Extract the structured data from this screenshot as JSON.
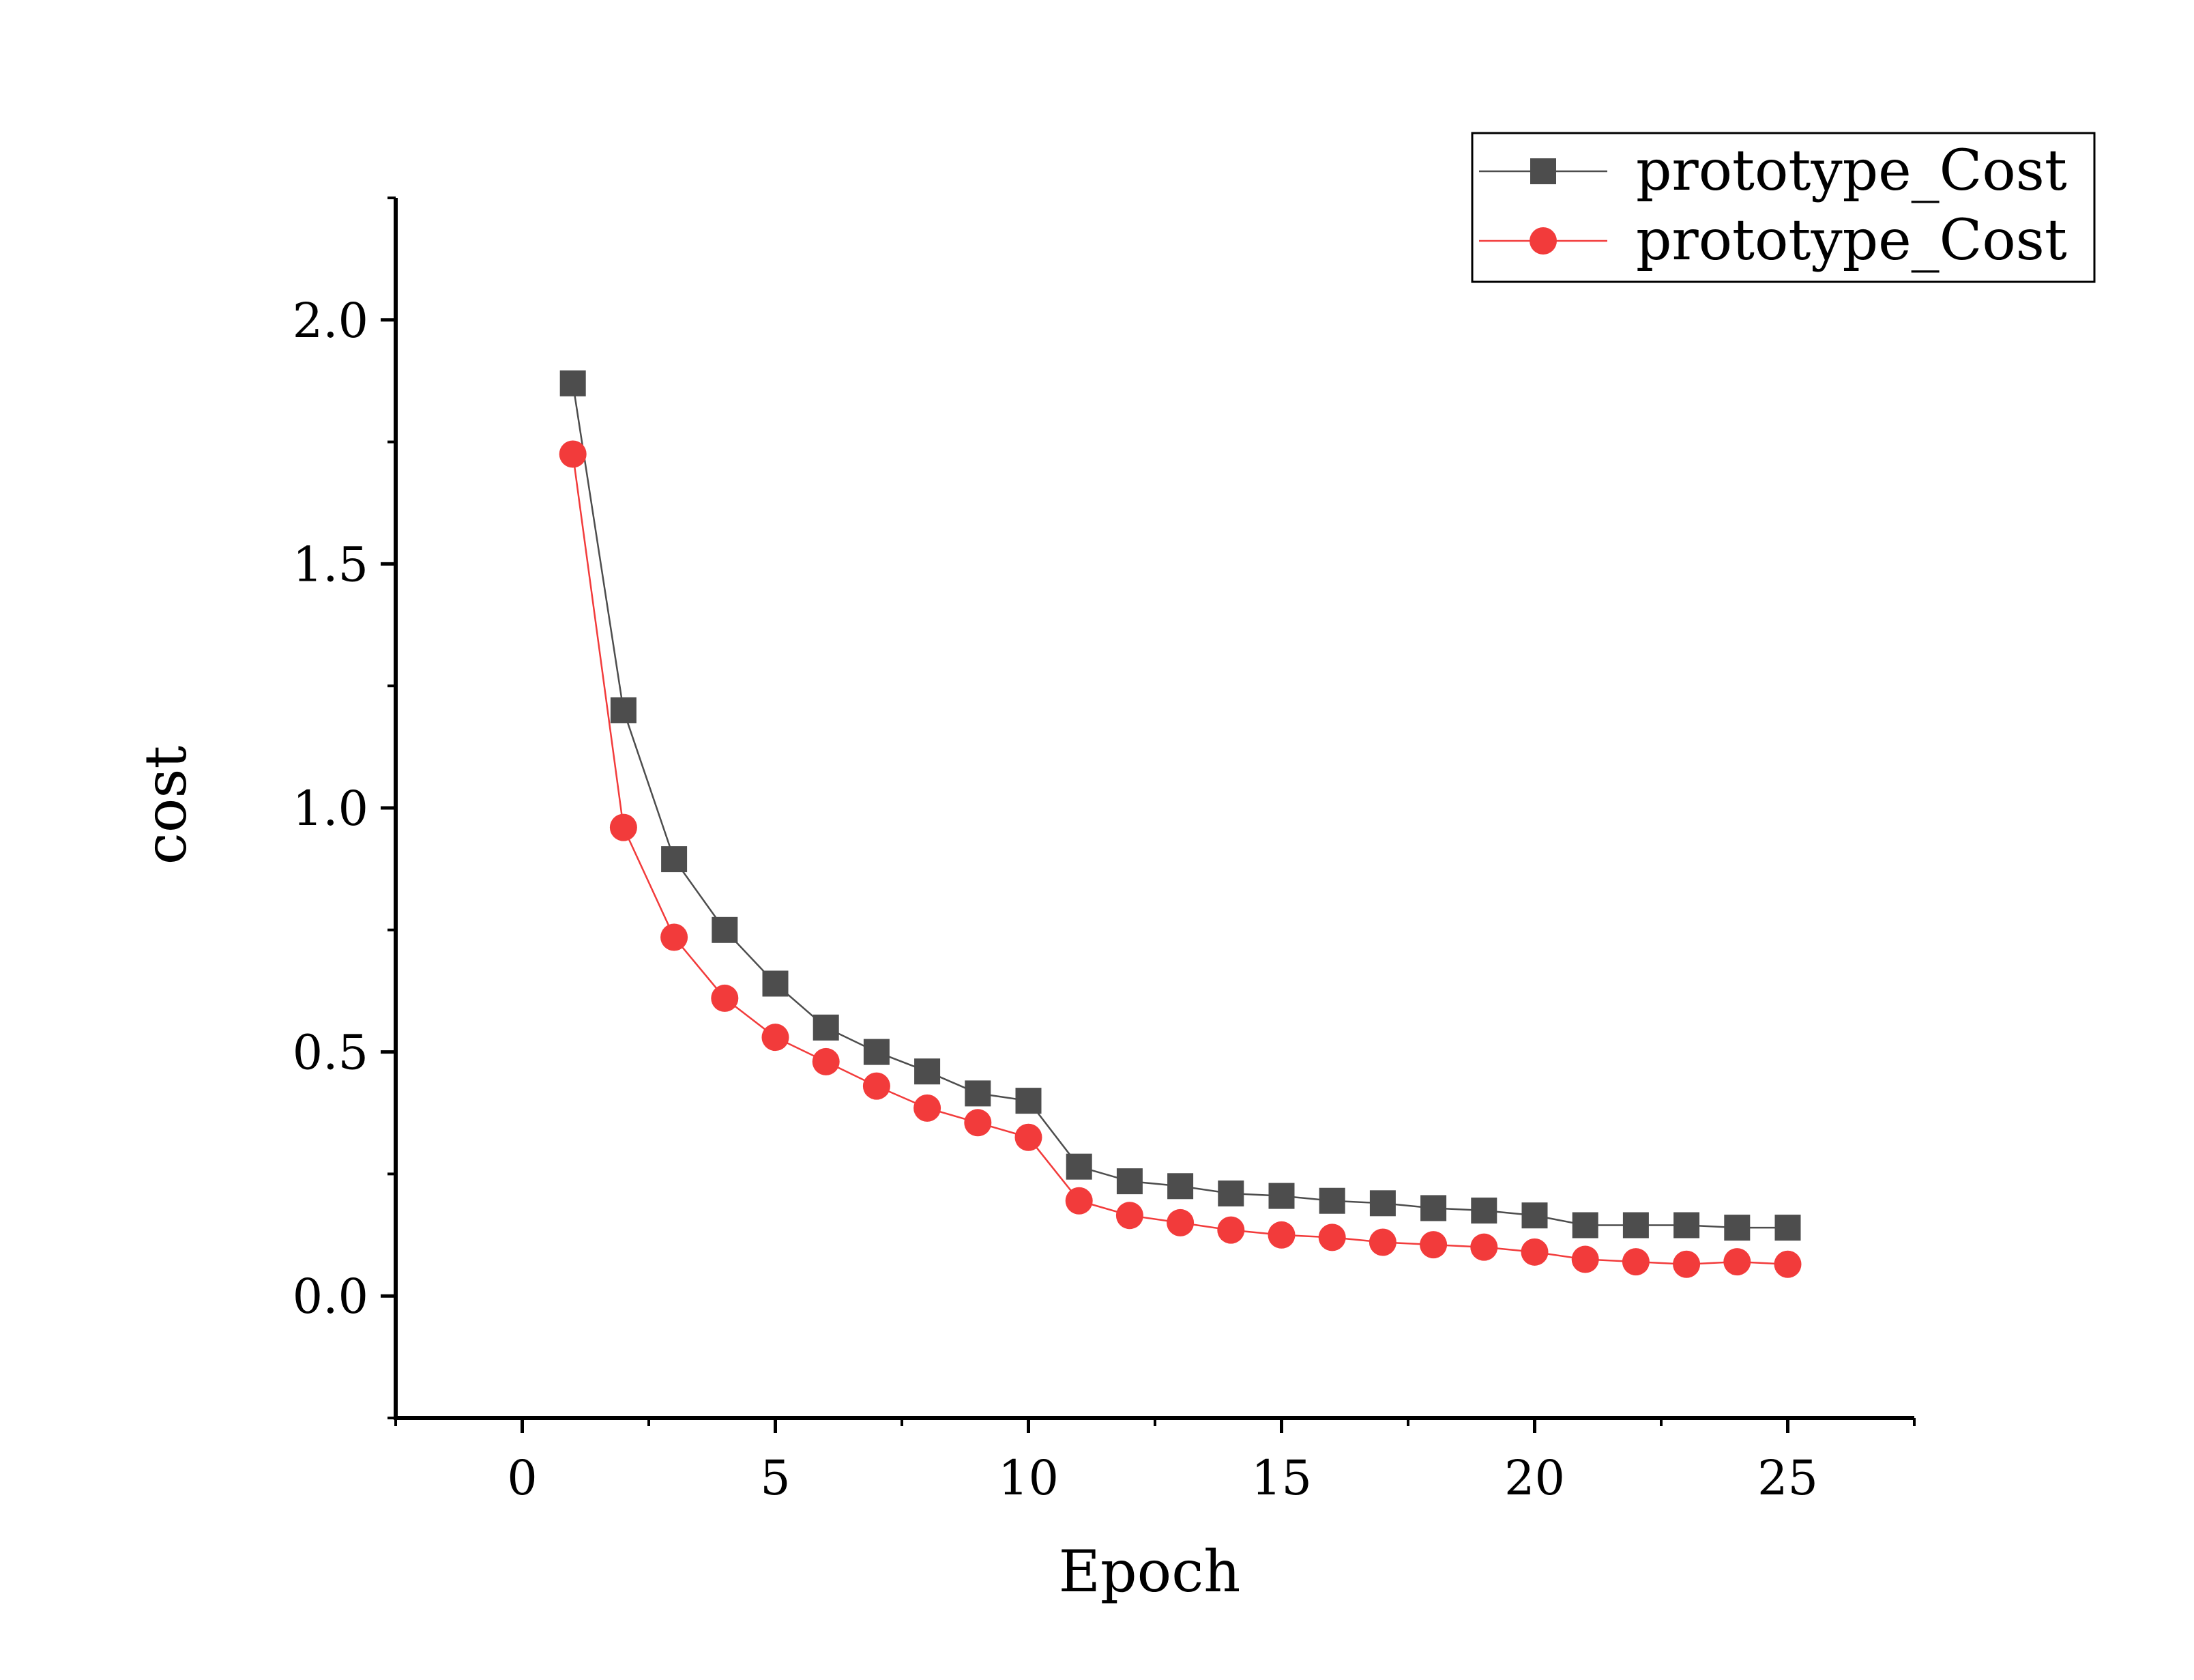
{
  "chart_data": {
    "type": "line",
    "title": "",
    "xlabel": "Epoch",
    "ylabel": "cost",
    "xlim": [
      -2.5,
      27.5
    ],
    "ylim": [
      -0.25,
      2.25
    ],
    "xticks": [
      0,
      5,
      10,
      15,
      20,
      25
    ],
    "xtick_labels": [
      "0",
      "5",
      "10",
      "15",
      "20",
      "25"
    ],
    "yticks": [
      0.0,
      0.5,
      1.0,
      1.5,
      2.0
    ],
    "ytick_labels": [
      "0.0",
      "0.5",
      "1.0",
      "1.5",
      "2.0"
    ],
    "grid": false,
    "legend_position": "top-right",
    "x": [
      1,
      2,
      3,
      4,
      5,
      6,
      7,
      8,
      9,
      10,
      11,
      12,
      13,
      14,
      15,
      16,
      17,
      18,
      19,
      20,
      21,
      22,
      23,
      24,
      25
    ],
    "series": [
      {
        "name": "prototype_Cost",
        "color": "#4d4d4d",
        "marker": "square",
        "values": [
          1.87,
          1.2,
          0.895,
          0.75,
          0.64,
          0.55,
          0.5,
          0.46,
          0.415,
          0.4,
          0.265,
          0.235,
          0.225,
          0.21,
          0.205,
          0.195,
          0.19,
          0.18,
          0.175,
          0.165,
          0.145,
          0.145,
          0.145,
          0.14,
          0.14
        ]
      },
      {
        "name": "prototype_Cost",
        "color": "#f23b3b",
        "marker": "circle",
        "values": [
          1.725,
          0.96,
          0.735,
          0.61,
          0.53,
          0.48,
          0.43,
          0.385,
          0.355,
          0.325,
          0.195,
          0.165,
          0.15,
          0.135,
          0.125,
          0.12,
          0.11,
          0.105,
          0.1,
          0.09,
          0.075,
          0.07,
          0.065,
          0.07,
          0.065
        ]
      }
    ]
  }
}
